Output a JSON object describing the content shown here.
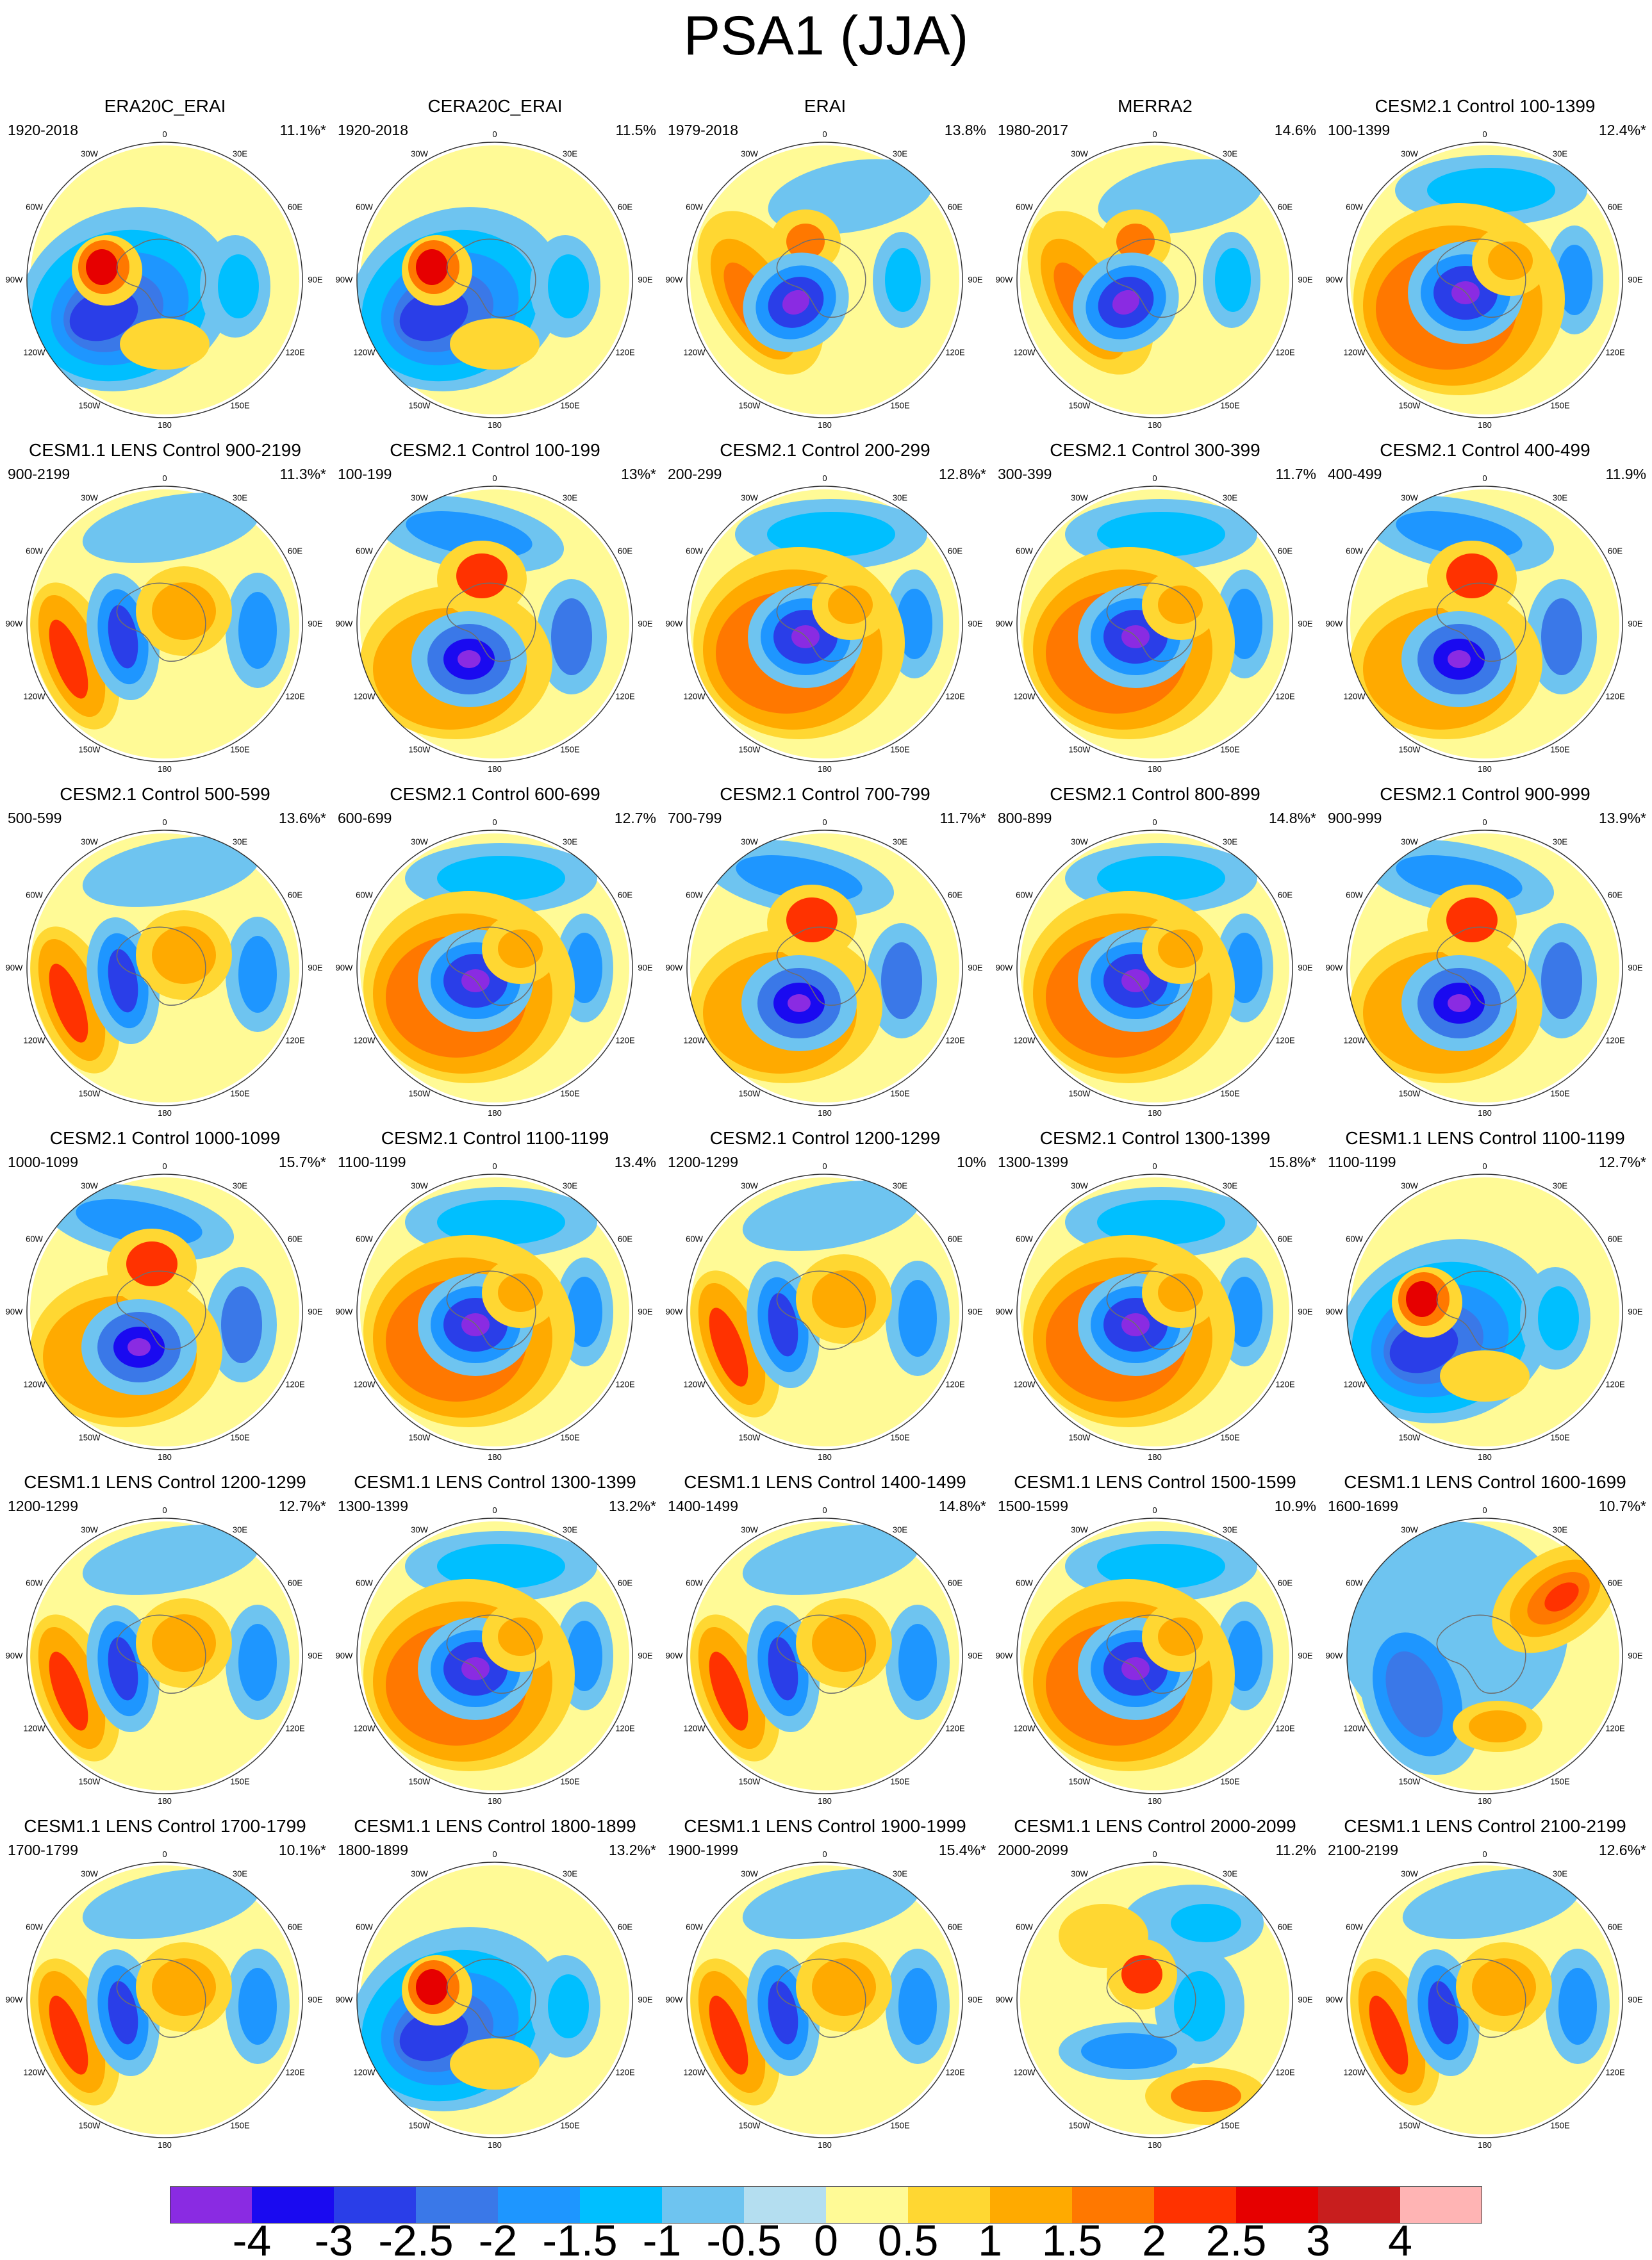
{
  "title": "PSA1 (JJA)",
  "lon_labels": [
    "0",
    "30E",
    "60E",
    "90E",
    "120E",
    "150E",
    "180",
    "150W",
    "120W",
    "90W",
    "60W",
    "30W"
  ],
  "panels": [
    {
      "title": "ERA20C_ERAI",
      "period": "1920-2018",
      "pct": "11.1%*",
      "pattern": "era20c"
    },
    {
      "title": "CERA20C_ERAI",
      "period": "1920-2018",
      "pct": "11.5%",
      "pattern": "era20c"
    },
    {
      "title": "ERAI",
      "period": "1979-2018",
      "pct": "13.8%",
      "pattern": "erai"
    },
    {
      "title": "MERRA2",
      "period": "1980-2017",
      "pct": "14.6%",
      "pattern": "erai"
    },
    {
      "title": "CESM2.1 Control 100-1399",
      "period": "100-1399",
      "pct": "12.4%*",
      "pattern": "ring"
    },
    {
      "title": "CESM1.1 LENS Control 900-2199",
      "period": "900-2199",
      "pct": "11.3%*",
      "pattern": "dipole"
    },
    {
      "title": "CESM2.1 Control 100-199",
      "period": "100-199",
      "pct": "13%*",
      "pattern": "tripole"
    },
    {
      "title": "CESM2.1 Control 200-299",
      "period": "200-299",
      "pct": "12.8%*",
      "pattern": "ring"
    },
    {
      "title": "CESM2.1 Control 300-399",
      "period": "300-399",
      "pct": "11.7%",
      "pattern": "ring"
    },
    {
      "title": "CESM2.1 Control 400-499",
      "period": "400-499",
      "pct": "11.9%",
      "pattern": "tripole"
    },
    {
      "title": "CESM2.1 Control 500-599",
      "period": "500-599",
      "pct": "13.6%*",
      "pattern": "dipole"
    },
    {
      "title": "CESM2.1 Control 600-699",
      "period": "600-699",
      "pct": "12.7%",
      "pattern": "ring"
    },
    {
      "title": "CESM2.1 Control 700-799",
      "period": "700-799",
      "pct": "11.7%*",
      "pattern": "tripole"
    },
    {
      "title": "CESM2.1 Control 800-899",
      "period": "800-899",
      "pct": "14.8%*",
      "pattern": "ring"
    },
    {
      "title": "CESM2.1 Control 900-999",
      "period": "900-999",
      "pct": "13.9%*",
      "pattern": "tripole"
    },
    {
      "title": "CESM2.1 Control 1000-1099",
      "period": "1000-1099",
      "pct": "15.7%*",
      "pattern": "tripole"
    },
    {
      "title": "CESM2.1 Control 1100-1199",
      "period": "1100-1199",
      "pct": "13.4%",
      "pattern": "ring"
    },
    {
      "title": "CESM2.1 Control 1200-1299",
      "period": "1200-1299",
      "pct": "10%",
      "pattern": "dipole"
    },
    {
      "title": "CESM2.1 Control 1300-1399",
      "period": "1300-1399",
      "pct": "15.8%*",
      "pattern": "ring"
    },
    {
      "title": "CESM1.1 LENS Control 1100-1199",
      "period": "1100-1199",
      "pct": "12.7%*",
      "pattern": "era20c"
    },
    {
      "title": "CESM1.1 LENS Control 1200-1299",
      "period": "1200-1299",
      "pct": "12.7%*",
      "pattern": "dipole"
    },
    {
      "title": "CESM1.1 LENS Control 1300-1399",
      "period": "1300-1399",
      "pct": "13.2%*",
      "pattern": "ring"
    },
    {
      "title": "CESM1.1 LENS Control 1400-1499",
      "period": "1400-1499",
      "pct": "14.8%*",
      "pattern": "dipole"
    },
    {
      "title": "CESM1.1 LENS Control 1500-1599",
      "period": "1500-1599",
      "pct": "10.9%",
      "pattern": "ring"
    },
    {
      "title": "CESM1.1 LENS Control 1600-1699",
      "period": "1600-1699",
      "pct": "10.7%*",
      "pattern": "reverse"
    },
    {
      "title": "CESM1.1 LENS Control 1700-1799",
      "period": "1700-1799",
      "pct": "10.1%*",
      "pattern": "dipole"
    },
    {
      "title": "CESM1.1 LENS Control 1800-1899",
      "period": "1800-1899",
      "pct": "13.2%*",
      "pattern": "era20c"
    },
    {
      "title": "CESM1.1 LENS Control 1900-1999",
      "period": "1900-1999",
      "pct": "15.4%*",
      "pattern": "dipole"
    },
    {
      "title": "CESM1.1 LENS Control 2000-2099",
      "period": "2000-2099",
      "pct": "11.2%",
      "pattern": "midneg"
    },
    {
      "title": "CESM1.1 LENS Control 2100-2199",
      "period": "2100-2199",
      "pct": "12.6%*",
      "pattern": "dipole"
    }
  ],
  "colorbar": {
    "colors": [
      "#8a2be2",
      "#1a0af0",
      "#2a3ee8",
      "#3a78e8",
      "#1e96ff",
      "#00bfff",
      "#6ec4f0",
      "#b4def0",
      "#fffa96",
      "#ffd732",
      "#ffaa00",
      "#ff7800",
      "#ff3200",
      "#e60000",
      "#c81e1e",
      "#ffb4b4"
    ],
    "labels": [
      "-4",
      "-3",
      "-2.5",
      "-2",
      "-1.5",
      "-1",
      "-0.5",
      "0",
      "0.5",
      "1",
      "1.5",
      "2",
      "2.5",
      "3",
      "4"
    ]
  }
}
